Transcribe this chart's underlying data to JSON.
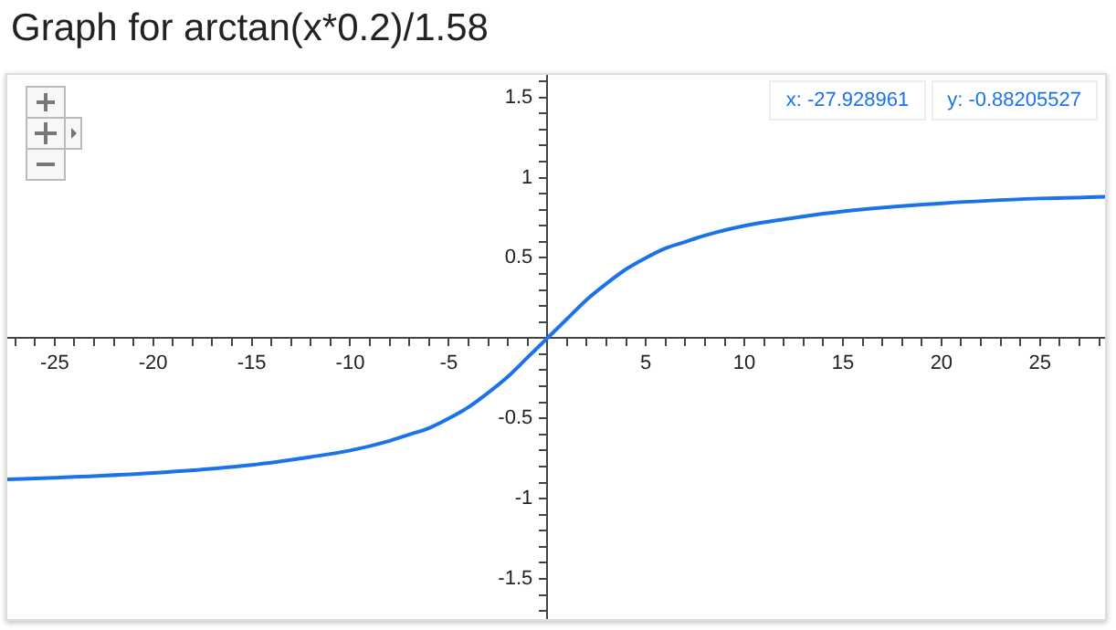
{
  "chart_data": {
    "type": "line",
    "title": "Graph for arctan(x*0.2)/1.58",
    "x": [
      -27.4,
      -25,
      -20,
      -15,
      -12,
      -10,
      -8,
      -7,
      -6,
      -5,
      -4,
      -3,
      -2,
      -1,
      0,
      1,
      2,
      3,
      4,
      5,
      6,
      7,
      8,
      10,
      12,
      15,
      20,
      25,
      28.3
    ],
    "series": [
      {
        "color": "#1a73e8",
        "values": [
          -0.88,
          -0.87,
          -0.84,
          -0.79,
          -0.74,
          -0.7,
          -0.64,
          -0.6,
          -0.56,
          -0.5,
          -0.43,
          -0.34,
          -0.24,
          -0.12,
          0,
          0.12,
          0.24,
          0.34,
          0.43,
          0.5,
          0.56,
          0.6,
          0.64,
          0.7,
          0.74,
          0.79,
          0.84,
          0.87,
          0.88
        ]
      }
    ],
    "xlim": [
      -27.4,
      28.3
    ],
    "ylim": [
      -1.75,
      1.64
    ],
    "xticks": [
      {
        "value": -27,
        "label": null
      },
      {
        "value": -26,
        "label": null
      },
      -25,
      {
        "value": -24,
        "label": null
      },
      {
        "value": -23,
        "label": null
      },
      {
        "value": -22,
        "label": null
      },
      {
        "value": -21,
        "label": null
      },
      -20,
      {
        "value": -19,
        "label": null
      },
      {
        "value": -18,
        "label": null
      },
      {
        "value": -17,
        "label": null
      },
      {
        "value": -16,
        "label": null
      },
      -15,
      {
        "value": -14,
        "label": null
      },
      {
        "value": -13,
        "label": null
      },
      {
        "value": -12,
        "label": null
      },
      {
        "value": -11,
        "label": null
      },
      -10,
      {
        "value": -9,
        "label": null
      },
      {
        "value": -8,
        "label": null
      },
      {
        "value": -7,
        "label": null
      },
      {
        "value": -6,
        "label": null
      },
      -5,
      {
        "value": -4,
        "label": null
      },
      {
        "value": -3,
        "label": null
      },
      {
        "value": -2,
        "label": null
      },
      {
        "value": -1,
        "label": null
      },
      {
        "value": 1,
        "label": null
      },
      {
        "value": 2,
        "label": null
      },
      {
        "value": 3,
        "label": null
      },
      {
        "value": 4,
        "label": null
      },
      5,
      {
        "value": 6,
        "label": null
      },
      {
        "value": 7,
        "label": null
      },
      {
        "value": 8,
        "label": null
      },
      {
        "value": 9,
        "label": null
      },
      10,
      {
        "value": 11,
        "label": null
      },
      {
        "value": 12,
        "label": null
      },
      {
        "value": 13,
        "label": null
      },
      {
        "value": 14,
        "label": null
      },
      15,
      {
        "value": 16,
        "label": null
      },
      {
        "value": 17,
        "label": null
      },
      {
        "value": 18,
        "label": null
      },
      {
        "value": 19,
        "label": null
      },
      20,
      {
        "value": 21,
        "label": null
      },
      {
        "value": 22,
        "label": null
      },
      {
        "value": 23,
        "label": null
      },
      {
        "value": 24,
        "label": null
      },
      25,
      {
        "value": 26,
        "label": null
      },
      {
        "value": 27,
        "label": null
      },
      {
        "value": 28,
        "label": null
      }
    ],
    "yticks": [
      {
        "value": -1.7,
        "label": null
      },
      {
        "value": -1.6,
        "label": null
      },
      -1.5,
      {
        "value": -1.4,
        "label": null
      },
      {
        "value": -1.3,
        "label": null
      },
      {
        "value": -1.2,
        "label": null
      },
      {
        "value": -1.1,
        "label": null
      },
      -1,
      {
        "value": -0.9,
        "label": null
      },
      {
        "value": -0.8,
        "label": null
      },
      {
        "value": -0.7,
        "label": null
      },
      {
        "value": -0.6,
        "label": null
      },
      -0.5,
      {
        "value": -0.4,
        "label": null
      },
      {
        "value": -0.3,
        "label": null
      },
      {
        "value": -0.2,
        "label": null
      },
      {
        "value": -0.1,
        "label": null
      },
      {
        "value": 0.1,
        "label": null
      },
      {
        "value": 0.2,
        "label": null
      },
      {
        "value": 0.3,
        "label": null
      },
      {
        "value": 0.4,
        "label": null
      },
      0.5,
      {
        "value": 0.6,
        "label": null
      },
      {
        "value": 0.7,
        "label": null
      },
      {
        "value": 0.8,
        "label": null
      },
      {
        "value": 0.9,
        "label": null
      },
      1,
      {
        "value": 1.1,
        "label": null
      },
      {
        "value": 1.2,
        "label": null
      },
      {
        "value": 1.3,
        "label": null
      },
      {
        "value": 1.4,
        "label": null
      },
      1.5,
      {
        "value": 1.6,
        "label": null
      }
    ],
    "annotations": [
      "x: -27.928961",
      "y: -0.88205527"
    ],
    "grid": false,
    "legend": false,
    "marker": "none",
    "line_style": "solid"
  }
}
